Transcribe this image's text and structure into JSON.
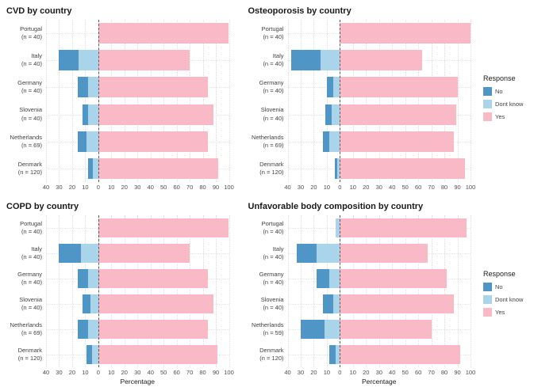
{
  "page": {
    "background": "#ffffff"
  },
  "axis": {
    "xlabel": "Percentage",
    "xlim": [
      -40,
      100
    ],
    "ticks": [
      -40,
      -30,
      -20,
      -10,
      0,
      10,
      20,
      30,
      40,
      50,
      60,
      70,
      80,
      90,
      100
    ],
    "tick_labels": [
      "40",
      "30",
      "20",
      "10",
      "0",
      "10",
      "20",
      "30",
      "40",
      "50",
      "60",
      "70",
      "80",
      "90",
      "100"
    ],
    "zero_line": 0,
    "grid": "dotted"
  },
  "legend": {
    "title": "Response",
    "items": [
      {
        "label": "No",
        "color": "#4f95c6"
      },
      {
        "label": "Dont know",
        "color": "#a9d4ea"
      },
      {
        "label": "Yes",
        "color": "#f9b9c7"
      }
    ]
  },
  "chart_data": [
    {
      "type": "bar",
      "orientation": "horizontal-diverging",
      "title": "CVD by country",
      "categories": [
        {
          "label": "Portugal",
          "n": "(n = 40)"
        },
        {
          "label": "Italy",
          "n": "(n = 40)"
        },
        {
          "label": "Germany",
          "n": "(n = 40)"
        },
        {
          "label": "Slovenia",
          "n": "(n = 40)"
        },
        {
          "label": "Netherlands",
          "n": "(n = 69)"
        },
        {
          "label": "Denmark",
          "n": "(n = 120)"
        }
      ],
      "series": [
        {
          "name": "No",
          "values": [
            0,
            15,
            8,
            4,
            7,
            4
          ]
        },
        {
          "name": "Dont know",
          "values": [
            0,
            15,
            8,
            8,
            9,
            4
          ]
        },
        {
          "name": "Yes",
          "values": [
            100,
            70,
            84,
            88,
            84,
            92
          ]
        }
      ]
    },
    {
      "type": "bar",
      "orientation": "horizontal-diverging",
      "title": "Osteoporosis by country",
      "categories": [
        {
          "label": "Portugal",
          "n": "(n = 40)"
        },
        {
          "label": "Italy",
          "n": "(n = 40)"
        },
        {
          "label": "Germany",
          "n": "(n = 40)"
        },
        {
          "label": "Slovenia",
          "n": "(n = 40)"
        },
        {
          "label": "Netherlands",
          "n": "(n = 69)"
        },
        {
          "label": "Denmark",
          "n": "(n = 120)"
        }
      ],
      "series": [
        {
          "name": "No",
          "values": [
            0,
            22,
            5,
            5,
            5,
            2
          ]
        },
        {
          "name": "Dont know",
          "values": [
            0,
            15,
            5,
            6,
            8,
            2
          ]
        },
        {
          "name": "Yes",
          "values": [
            100,
            63,
            90,
            89,
            87,
            96
          ]
        }
      ]
    },
    {
      "type": "bar",
      "orientation": "horizontal-diverging",
      "title": "COPD by country",
      "categories": [
        {
          "label": "Portugal",
          "n": "(n = 40)"
        },
        {
          "label": "Italy",
          "n": "(n = 40)"
        },
        {
          "label": "Germany",
          "n": "(n = 40)"
        },
        {
          "label": "Slovenia",
          "n": "(n = 40)"
        },
        {
          "label": "Netherlands",
          "n": "(n = 69)"
        },
        {
          "label": "Denmark",
          "n": "(n = 120)"
        }
      ],
      "series": [
        {
          "name": "No",
          "values": [
            0,
            17,
            8,
            6,
            8,
            4
          ]
        },
        {
          "name": "Dont know",
          "values": [
            0,
            13,
            8,
            6,
            8,
            5
          ]
        },
        {
          "name": "Yes",
          "values": [
            100,
            70,
            84,
            88,
            84,
            91
          ]
        }
      ]
    },
    {
      "type": "bar",
      "orientation": "horizontal-diverging",
      "title": "Unfavorable body composition by country",
      "categories": [
        {
          "label": "Portugal",
          "n": "(n = 40)"
        },
        {
          "label": "Italy",
          "n": "(n = 40)"
        },
        {
          "label": "Germany",
          "n": "(n = 40)"
        },
        {
          "label": "Slovenia",
          "n": "(n = 40)"
        },
        {
          "label": "Netherlands",
          "n": "(n = 59)"
        },
        {
          "label": "Denmark",
          "n": "(n = 120)"
        }
      ],
      "series": [
        {
          "name": "No",
          "values": [
            0,
            15,
            10,
            8,
            18,
            5
          ]
        },
        {
          "name": "Dont know",
          "values": [
            3,
            18,
            8,
            5,
            12,
            3
          ]
        },
        {
          "name": "Yes",
          "values": [
            97,
            67,
            82,
            87,
            70,
            92
          ]
        }
      ]
    }
  ]
}
